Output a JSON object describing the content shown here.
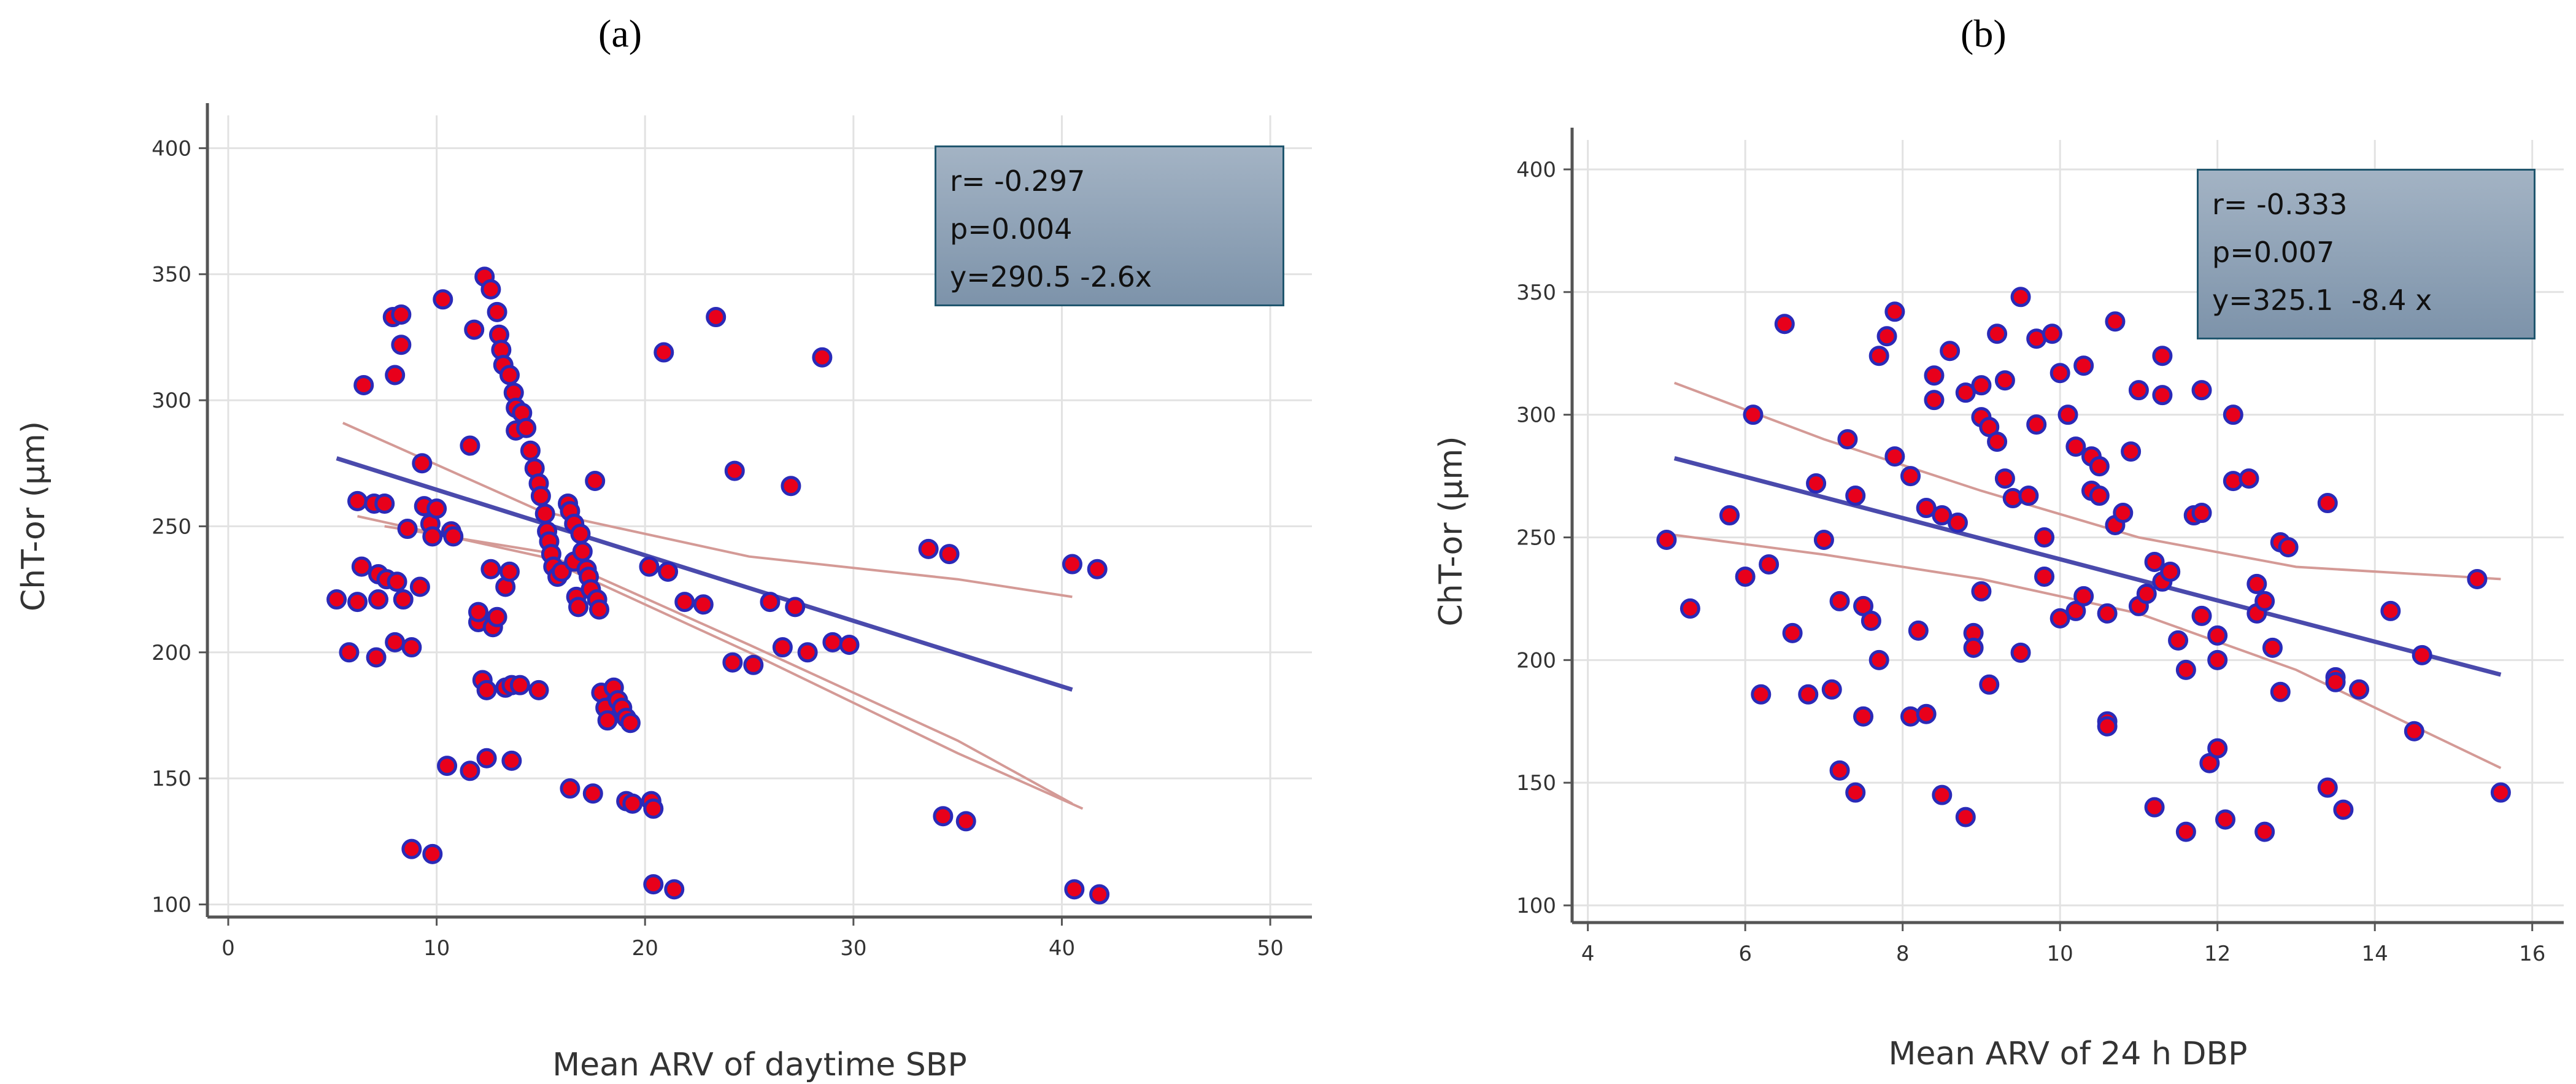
{
  "panels": {
    "a": {
      "label": "(a)"
    },
    "b": {
      "label": "(b)"
    }
  },
  "colors": {
    "point_fill": "#e8001b",
    "point_stroke": "#2a2ab8",
    "regression_line": "#4a4aac",
    "ci_line": "#d49a96",
    "axis": "#555555",
    "grid": "#e2e2e2"
  },
  "chart_data": [
    {
      "type": "scatter",
      "panel": "a",
      "title": "",
      "xlabel": "Mean ARV of daytime SBP",
      "ylabel": "ChT-or (μm)",
      "xlim": [
        -1,
        52
      ],
      "ylim": [
        95,
        413
      ],
      "xticks": [
        0,
        10,
        20,
        30,
        40,
        50
      ],
      "yticks": [
        100,
        150,
        200,
        250,
        300,
        350,
        400
      ],
      "grid": true,
      "stats": {
        "r": "r= -0.297",
        "p": "p=0.004",
        "equation": "y=290.5 -2.6x"
      },
      "regression": {
        "intercept": 290.5,
        "slope": -2.6,
        "x_range": [
          5.2,
          40.5
        ]
      },
      "ci_upper": [
        [
          5.5,
          291
        ],
        [
          15,
          256
        ],
        [
          25,
          238
        ],
        [
          35,
          229
        ],
        [
          40.5,
          222
        ]
      ],
      "ci_lower": [
        [
          6.2,
          254
        ],
        [
          15,
          238
        ],
        [
          25,
          200
        ],
        [
          35,
          160
        ],
        [
          41,
          138
        ]
      ],
      "ci_lower2": [
        [
          7.5,
          250
        ],
        [
          15,
          240
        ],
        [
          25,
          203
        ],
        [
          35,
          165
        ],
        [
          40.5,
          140
        ]
      ],
      "points": [
        [
          5.2,
          221
        ],
        [
          5.8,
          200
        ],
        [
          6.2,
          260
        ],
        [
          6.2,
          220
        ],
        [
          6.4,
          234
        ],
        [
          6.5,
          306
        ],
        [
          7.0,
          259
        ],
        [
          7.1,
          198
        ],
        [
          7.2,
          221
        ],
        [
          7.2,
          231
        ],
        [
          7.5,
          259
        ],
        [
          7.6,
          229
        ],
        [
          7.9,
          333
        ],
        [
          8.0,
          310
        ],
        [
          8.0,
          204
        ],
        [
          8.1,
          228
        ],
        [
          8.3,
          322
        ],
        [
          8.3,
          334
        ],
        [
          8.4,
          221
        ],
        [
          8.6,
          249
        ],
        [
          8.8,
          202
        ],
        [
          8.8,
          122
        ],
        [
          9.2,
          226
        ],
        [
          9.3,
          275
        ],
        [
          9.4,
          258
        ],
        [
          9.7,
          251
        ],
        [
          9.8,
          246
        ],
        [
          9.8,
          120
        ],
        [
          10.0,
          257
        ],
        [
          10.3,
          340
        ],
        [
          10.5,
          155
        ],
        [
          10.7,
          248
        ],
        [
          10.8,
          246
        ],
        [
          11.6,
          153
        ],
        [
          11.6,
          282
        ],
        [
          11.8,
          328
        ],
        [
          12.0,
          212
        ],
        [
          12.0,
          216
        ],
        [
          12.2,
          189
        ],
        [
          12.3,
          349
        ],
        [
          12.4,
          185
        ],
        [
          12.4,
          158
        ],
        [
          12.6,
          344
        ],
        [
          12.6,
          233
        ],
        [
          12.7,
          210
        ],
        [
          12.9,
          335
        ],
        [
          12.9,
          214
        ],
        [
          13.0,
          326
        ],
        [
          13.1,
          320
        ],
        [
          13.2,
          314
        ],
        [
          13.3,
          186
        ],
        [
          13.3,
          226
        ],
        [
          13.5,
          310
        ],
        [
          13.5,
          232
        ],
        [
          13.6,
          157
        ],
        [
          13.6,
          187
        ],
        [
          13.7,
          303
        ],
        [
          13.8,
          288
        ],
        [
          13.8,
          297
        ],
        [
          14.0,
          187
        ],
        [
          14.1,
          295
        ],
        [
          14.3,
          289
        ],
        [
          14.5,
          280
        ],
        [
          14.7,
          273
        ],
        [
          14.9,
          267
        ],
        [
          14.9,
          185
        ],
        [
          15.0,
          262
        ],
        [
          15.2,
          255
        ],
        [
          15.3,
          248
        ],
        [
          15.4,
          244
        ],
        [
          15.5,
          239
        ],
        [
          15.6,
          234
        ],
        [
          15.8,
          230
        ],
        [
          16.0,
          232
        ],
        [
          16.3,
          259
        ],
        [
          16.4,
          146
        ],
        [
          16.4,
          256
        ],
        [
          16.6,
          251
        ],
        [
          16.6,
          236
        ],
        [
          16.7,
          222
        ],
        [
          16.8,
          218
        ],
        [
          16.9,
          247
        ],
        [
          17.0,
          240
        ],
        [
          17.2,
          233
        ],
        [
          17.3,
          230
        ],
        [
          17.4,
          225
        ],
        [
          17.5,
          144
        ],
        [
          17.6,
          268
        ],
        [
          17.7,
          221
        ],
        [
          17.8,
          217
        ],
        [
          17.9,
          184
        ],
        [
          18.1,
          178
        ],
        [
          18.2,
          173
        ],
        [
          18.5,
          186
        ],
        [
          18.7,
          181
        ],
        [
          18.9,
          178
        ],
        [
          19.1,
          141
        ],
        [
          19.1,
          174
        ],
        [
          19.3,
          172
        ],
        [
          19.4,
          140
        ],
        [
          20.2,
          234
        ],
        [
          20.3,
          141
        ],
        [
          20.4,
          108
        ],
        [
          20.4,
          138
        ],
        [
          20.9,
          319
        ],
        [
          21.1,
          232
        ],
        [
          21.4,
          106
        ],
        [
          21.9,
          220
        ],
        [
          22.8,
          219
        ],
        [
          23.4,
          333
        ],
        [
          24.2,
          196
        ],
        [
          24.3,
          272
        ],
        [
          25.2,
          195
        ],
        [
          26.0,
          220
        ],
        [
          26.6,
          202
        ],
        [
          27.0,
          266
        ],
        [
          27.2,
          218
        ],
        [
          27.8,
          200
        ],
        [
          28.5,
          317
        ],
        [
          29.0,
          204
        ],
        [
          29.8,
          203
        ],
        [
          33.6,
          241
        ],
        [
          34.3,
          135
        ],
        [
          34.6,
          239
        ],
        [
          35.4,
          133
        ],
        [
          40.5,
          235
        ],
        [
          40.6,
          106
        ],
        [
          41.7,
          233
        ],
        [
          41.8,
          104
        ]
      ]
    },
    {
      "type": "scatter",
      "panel": "b",
      "title": "",
      "xlabel": "Mean ARV of 24 h DBP",
      "ylabel": "ChT-or (μm)",
      "xlim": [
        3.8,
        16.4
      ],
      "ylim": [
        93,
        412
      ],
      "xticks": [
        4,
        6,
        8,
        10,
        12,
        14,
        16
      ],
      "yticks": [
        100,
        150,
        200,
        250,
        300,
        350,
        400
      ],
      "grid": true,
      "stats": {
        "r": "r= -0.333",
        "p": "p=0.007",
        "equation": "y=325.1  -8.4 x"
      },
      "regression": {
        "intercept": 325.1,
        "slope": -8.4,
        "x_range": [
          5.1,
          15.6
        ]
      },
      "ci_upper": [
        [
          5.1,
          313
        ],
        [
          7,
          290
        ],
        [
          9,
          269
        ],
        [
          11,
          250
        ],
        [
          13,
          238
        ],
        [
          15.6,
          233
        ]
      ],
      "ci_lower": [
        [
          5.1,
          251
        ],
        [
          7,
          243
        ],
        [
          9,
          233
        ],
        [
          11,
          219
        ],
        [
          13,
          196
        ],
        [
          15.6,
          156
        ]
      ],
      "points": [
        [
          5.0,
          249
        ],
        [
          5.3,
          221
        ],
        [
          5.8,
          259
        ],
        [
          6.0,
          234
        ],
        [
          6.1,
          300
        ],
        [
          6.2,
          186
        ],
        [
          6.3,
          239
        ],
        [
          6.5,
          337
        ],
        [
          6.6,
          211
        ],
        [
          6.8,
          186
        ],
        [
          6.9,
          272
        ],
        [
          7.0,
          249
        ],
        [
          7.1,
          188
        ],
        [
          7.2,
          155
        ],
        [
          7.2,
          224
        ],
        [
          7.3,
          290
        ],
        [
          7.4,
          267
        ],
        [
          7.4,
          146
        ],
        [
          7.5,
          177
        ],
        [
          7.5,
          222
        ],
        [
          7.6,
          216
        ],
        [
          7.7,
          324
        ],
        [
          7.7,
          200
        ],
        [
          7.8,
          332
        ],
        [
          7.9,
          342
        ],
        [
          7.9,
          283
        ],
        [
          8.1,
          275
        ],
        [
          8.1,
          177
        ],
        [
          8.2,
          212
        ],
        [
          8.3,
          262
        ],
        [
          8.3,
          178
        ],
        [
          8.4,
          316
        ],
        [
          8.4,
          306
        ],
        [
          8.5,
          145
        ],
        [
          8.5,
          259
        ],
        [
          8.6,
          326
        ],
        [
          8.7,
          256
        ],
        [
          8.8,
          136
        ],
        [
          8.8,
          309
        ],
        [
          8.9,
          211
        ],
        [
          8.9,
          205
        ],
        [
          9.0,
          312
        ],
        [
          9.0,
          299
        ],
        [
          9.0,
          228
        ],
        [
          9.1,
          295
        ],
        [
          9.1,
          190
        ],
        [
          9.2,
          289
        ],
        [
          9.2,
          333
        ],
        [
          9.3,
          274
        ],
        [
          9.3,
          314
        ],
        [
          9.4,
          266
        ],
        [
          9.5,
          348
        ],
        [
          9.5,
          203
        ],
        [
          9.6,
          267
        ],
        [
          9.7,
          331
        ],
        [
          9.7,
          296
        ],
        [
          9.8,
          250
        ],
        [
          9.8,
          234
        ],
        [
          9.9,
          333
        ],
        [
          10.0,
          217
        ],
        [
          10.0,
          317
        ],
        [
          10.1,
          300
        ],
        [
          10.2,
          287
        ],
        [
          10.2,
          220
        ],
        [
          10.3,
          226
        ],
        [
          10.3,
          320
        ],
        [
          10.4,
          283
        ],
        [
          10.4,
          269
        ],
        [
          10.5,
          279
        ],
        [
          10.5,
          267
        ],
        [
          10.6,
          219
        ],
        [
          10.6,
          175
        ],
        [
          10.6,
          173
        ],
        [
          10.7,
          338
        ],
        [
          10.7,
          255
        ],
        [
          10.8,
          260
        ],
        [
          10.9,
          285
        ],
        [
          11.0,
          310
        ],
        [
          11.0,
          222
        ],
        [
          11.1,
          227
        ],
        [
          11.2,
          140
        ],
        [
          11.2,
          240
        ],
        [
          11.3,
          308
        ],
        [
          11.3,
          232
        ],
        [
          11.3,
          324
        ],
        [
          11.4,
          236
        ],
        [
          11.5,
          208
        ],
        [
          11.6,
          196
        ],
        [
          11.6,
          130
        ],
        [
          11.7,
          259
        ],
        [
          11.8,
          260
        ],
        [
          11.8,
          310
        ],
        [
          11.8,
          218
        ],
        [
          11.9,
          158
        ],
        [
          12.0,
          164
        ],
        [
          12.0,
          210
        ],
        [
          12.0,
          200
        ],
        [
          12.1,
          135
        ],
        [
          12.2,
          273
        ],
        [
          12.2,
          300
        ],
        [
          12.4,
          274
        ],
        [
          12.5,
          231
        ],
        [
          12.5,
          219
        ],
        [
          12.6,
          130
        ],
        [
          12.6,
          224
        ],
        [
          12.7,
          205
        ],
        [
          12.8,
          248
        ],
        [
          12.8,
          187
        ],
        [
          12.9,
          246
        ],
        [
          13.4,
          264
        ],
        [
          13.4,
          148
        ],
        [
          13.5,
          193
        ],
        [
          13.5,
          191
        ],
        [
          13.6,
          139
        ],
        [
          13.8,
          188
        ],
        [
          14.2,
          220
        ],
        [
          14.5,
          171
        ],
        [
          14.6,
          202
        ],
        [
          15.3,
          233
        ],
        [
          15.6,
          146
        ]
      ]
    }
  ]
}
